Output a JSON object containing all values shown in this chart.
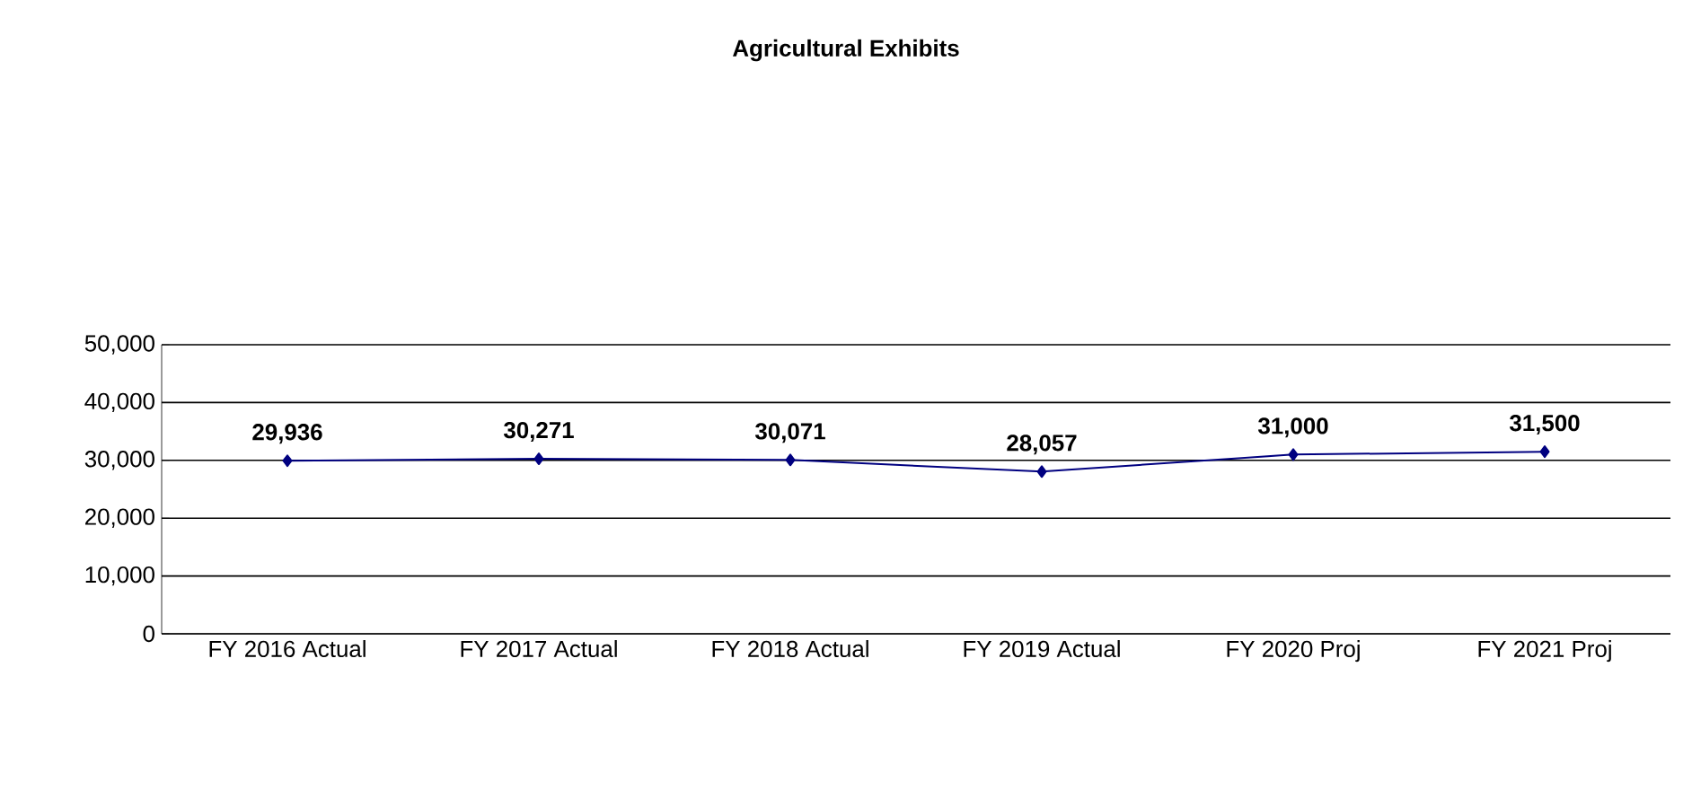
{
  "chart_data": {
    "type": "line",
    "title": "Agricultural Exhibits",
    "categories": [
      "FY 2016 Actual",
      "FY 2017 Actual",
      "FY 2018 Actual",
      "FY 2019 Actual",
      "FY 2020 Proj",
      "FY 2021 Proj"
    ],
    "series": [
      {
        "color": "#000080",
        "values": [
          29936,
          30271,
          30071,
          28057,
          31000,
          31500
        ],
        "value_labels": [
          "29,936",
          "30,271",
          "30,071",
          "28,057",
          "31,000",
          "31,500"
        ]
      }
    ],
    "ylim": [
      0,
      50000
    ],
    "yticks": [
      {
        "value": 0,
        "label": "0"
      },
      {
        "value": 10000,
        "label": "10,000"
      },
      {
        "value": 20000,
        "label": "20,000"
      },
      {
        "value": 30000,
        "label": "30,000"
      },
      {
        "value": 40000,
        "label": "40,000"
      },
      {
        "value": 50000,
        "label": "50,000"
      }
    ],
    "grid": "y",
    "marker": "diamond",
    "line_style": "solid"
  }
}
